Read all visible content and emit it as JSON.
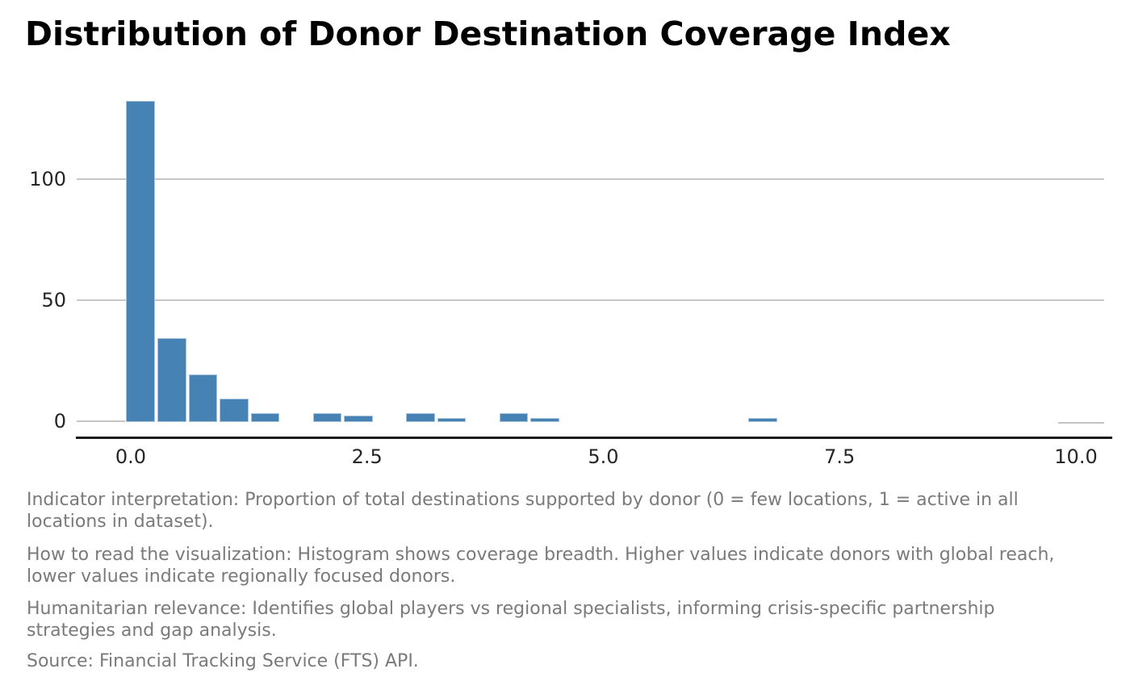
{
  "title": "Distribution of Donor Destination Coverage Index",
  "chart_data": {
    "type": "bar",
    "subtype": "histogram",
    "title": "Distribution of Donor Destination Coverage Index",
    "xlabel": "",
    "ylabel": "",
    "x_tick_labels": [
      "0.0",
      "2.5",
      "5.0",
      "7.5",
      "10.0"
    ],
    "x_tick_values": [
      0,
      2.5,
      5,
      7.5,
      10
    ],
    "y_tick_labels": [
      "0",
      "50",
      "100"
    ],
    "y_tick_values": [
      0,
      50,
      100
    ],
    "xlim": [
      -0.57,
      10.3
    ],
    "ylim": [
      -7,
      139
    ],
    "grid": "horizontal-light",
    "legend": "none",
    "bin_start": -0.06,
    "bin_width": 0.329,
    "counts": [
      132,
      34,
      19,
      9,
      3,
      0,
      3,
      2,
      0,
      3,
      1,
      0,
      3,
      1,
      0,
      0,
      0,
      0,
      0,
      0,
      1,
      0,
      0,
      0,
      0,
      0,
      0,
      0,
      0,
      0,
      0
    ],
    "bar_color": "#4682b4",
    "bar_edge_color": "#a9c6dd",
    "grid_color": "#c8c8c8",
    "axis_line_color": "#1c1c1c",
    "tick_label_color": "#262626"
  },
  "notes": {
    "text_color": "#7a7a7a",
    "paragraphs": [
      {
        "lines": [
          "Indicator interpretation: Proportion of total destinations supported by donor (0 = few locations, 1 = active in all",
          "locations in dataset)."
        ]
      },
      {
        "lines": [
          "How to read the visualization: Histogram shows coverage breadth. Higher values indicate donors with global reach,",
          "lower values indicate regionally focused donors."
        ]
      },
      {
        "lines": [
          "Humanitarian relevance: Identifies global players vs regional specialists, informing crisis-specific partnership",
          "strategies and gap analysis."
        ]
      },
      {
        "lines": [
          "Source: Financial Tracking Service (FTS) API."
        ]
      }
    ]
  }
}
